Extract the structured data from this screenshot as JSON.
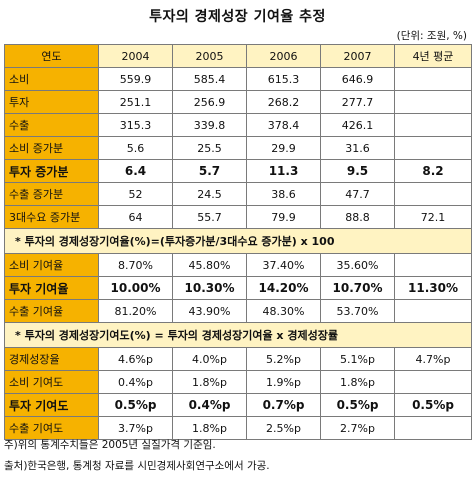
{
  "title": "투자의 경제성장 기여율 추정",
  "unit": "(단위: 조원, %)",
  "header": [
    "연도",
    "2004",
    "2005",
    "2006",
    "2007",
    "4년 평균"
  ],
  "section1_rows": [
    {
      "label": "소비",
      "values": [
        "559.9",
        "585.4",
        "615.3",
        "646.9",
        ""
      ]
    },
    {
      "label": "투자",
      "values": [
        "251.1",
        "256.9",
        "268.2",
        "277.7",
        ""
      ]
    },
    {
      "label": "수출",
      "values": [
        "315.3",
        "339.8",
        "378.4",
        "426.1",
        ""
      ]
    },
    {
      "label": "소비 증가분",
      "values": [
        "5.6",
        "25.5",
        "29.9",
        "31.6",
        ""
      ]
    },
    {
      "label": "투자 증가분",
      "values": [
        "6.4",
        "5.7",
        "11.3",
        "9.5",
        "8.2"
      ]
    },
    {
      "label": "수출 증가분",
      "values": [
        "52",
        "24.5",
        "38.6",
        "47.7",
        ""
      ]
    },
    {
      "label": "3대수요 증가분",
      "values": [
        "64",
        "55.7",
        "79.9",
        "88.8",
        "72.1"
      ]
    }
  ],
  "band1": "* 투자의 경제성장기여율(%)=(투자증가분/3대수요 증가분) x 100",
  "section2_rows": [
    {
      "label": "소비 기여율",
      "values": [
        "8.70%",
        "45.80%",
        "37.40%",
        "35.60%",
        ""
      ]
    },
    {
      "label": "투자 기여율",
      "values": [
        "10.00%",
        "10.30%",
        "14.20%",
        "10.70%",
        "11.30%"
      ]
    },
    {
      "label": "수출 기여율",
      "values": [
        "81.20%",
        "43.90%",
        "48.30%",
        "53.70%",
        ""
      ]
    }
  ],
  "band2": "* 투자의 경제성장기여도(%) = 투자의 경제성장기여율 x 경제성장률",
  "section3_rows": [
    {
      "label": "경제성장율",
      "values": [
        "4.6%p",
        "4.0%p",
        "5.2%p",
        "5.1%p",
        "4.7%p"
      ]
    },
    {
      "label": "소비 기여도",
      "values": [
        "0.4%p",
        "1.8%p",
        "1.9%p",
        "1.8%p",
        ""
      ]
    },
    {
      "label": "투자 기여도",
      "values": [
        "0.5%p",
        "0.4%p",
        "0.7%p",
        "0.5%p",
        "0.5%p"
      ]
    },
    {
      "label": "수출 기여도",
      "values": [
        "3.7%p",
        "1.8%p",
        "2.5%p",
        "2.7%p",
        ""
      ]
    }
  ],
  "note1": "주)위의 통계수치들은 2005년 실질가격 기준임.",
  "note2": "출처)한국은행, 통계청 자료를 시민경제사회연구소에서 가공."
}
